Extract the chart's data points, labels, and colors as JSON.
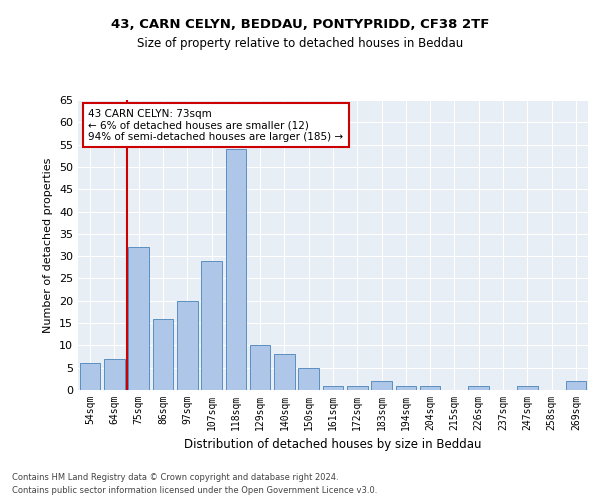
{
  "title1": "43, CARN CELYN, BEDDAU, PONTYPRIDD, CF38 2TF",
  "title2": "Size of property relative to detached houses in Beddau",
  "xlabel": "Distribution of detached houses by size in Beddau",
  "ylabel": "Number of detached properties",
  "categories": [
    "54sqm",
    "64sqm",
    "75sqm",
    "86sqm",
    "97sqm",
    "107sqm",
    "118sqm",
    "129sqm",
    "140sqm",
    "150sqm",
    "161sqm",
    "172sqm",
    "183sqm",
    "194sqm",
    "204sqm",
    "215sqm",
    "226sqm",
    "237sqm",
    "247sqm",
    "258sqm",
    "269sqm"
  ],
  "values": [
    6,
    7,
    32,
    16,
    20,
    29,
    54,
    10,
    8,
    5,
    1,
    1,
    2,
    1,
    1,
    0,
    1,
    0,
    1,
    0,
    2
  ],
  "bar_color": "#aec6e8",
  "bar_edge_color": "#5a8fc0",
  "annotation_line1": "43 CARN CELYN: 73sqm",
  "annotation_line2": "← 6% of detached houses are smaller (12)",
  "annotation_line3": "94% of semi-detached houses are larger (185) →",
  "annotation_box_color": "#ffffff",
  "annotation_box_edge": "#cc0000",
  "vline_color": "#cc0000",
  "ylim": [
    0,
    65
  ],
  "yticks": [
    0,
    5,
    10,
    15,
    20,
    25,
    30,
    35,
    40,
    45,
    50,
    55,
    60,
    65
  ],
  "background_color": "#e8eef5",
  "grid_color": "#ffffff",
  "footer1": "Contains HM Land Registry data © Crown copyright and database right 2024.",
  "footer2": "Contains public sector information licensed under the Open Government Licence v3.0."
}
